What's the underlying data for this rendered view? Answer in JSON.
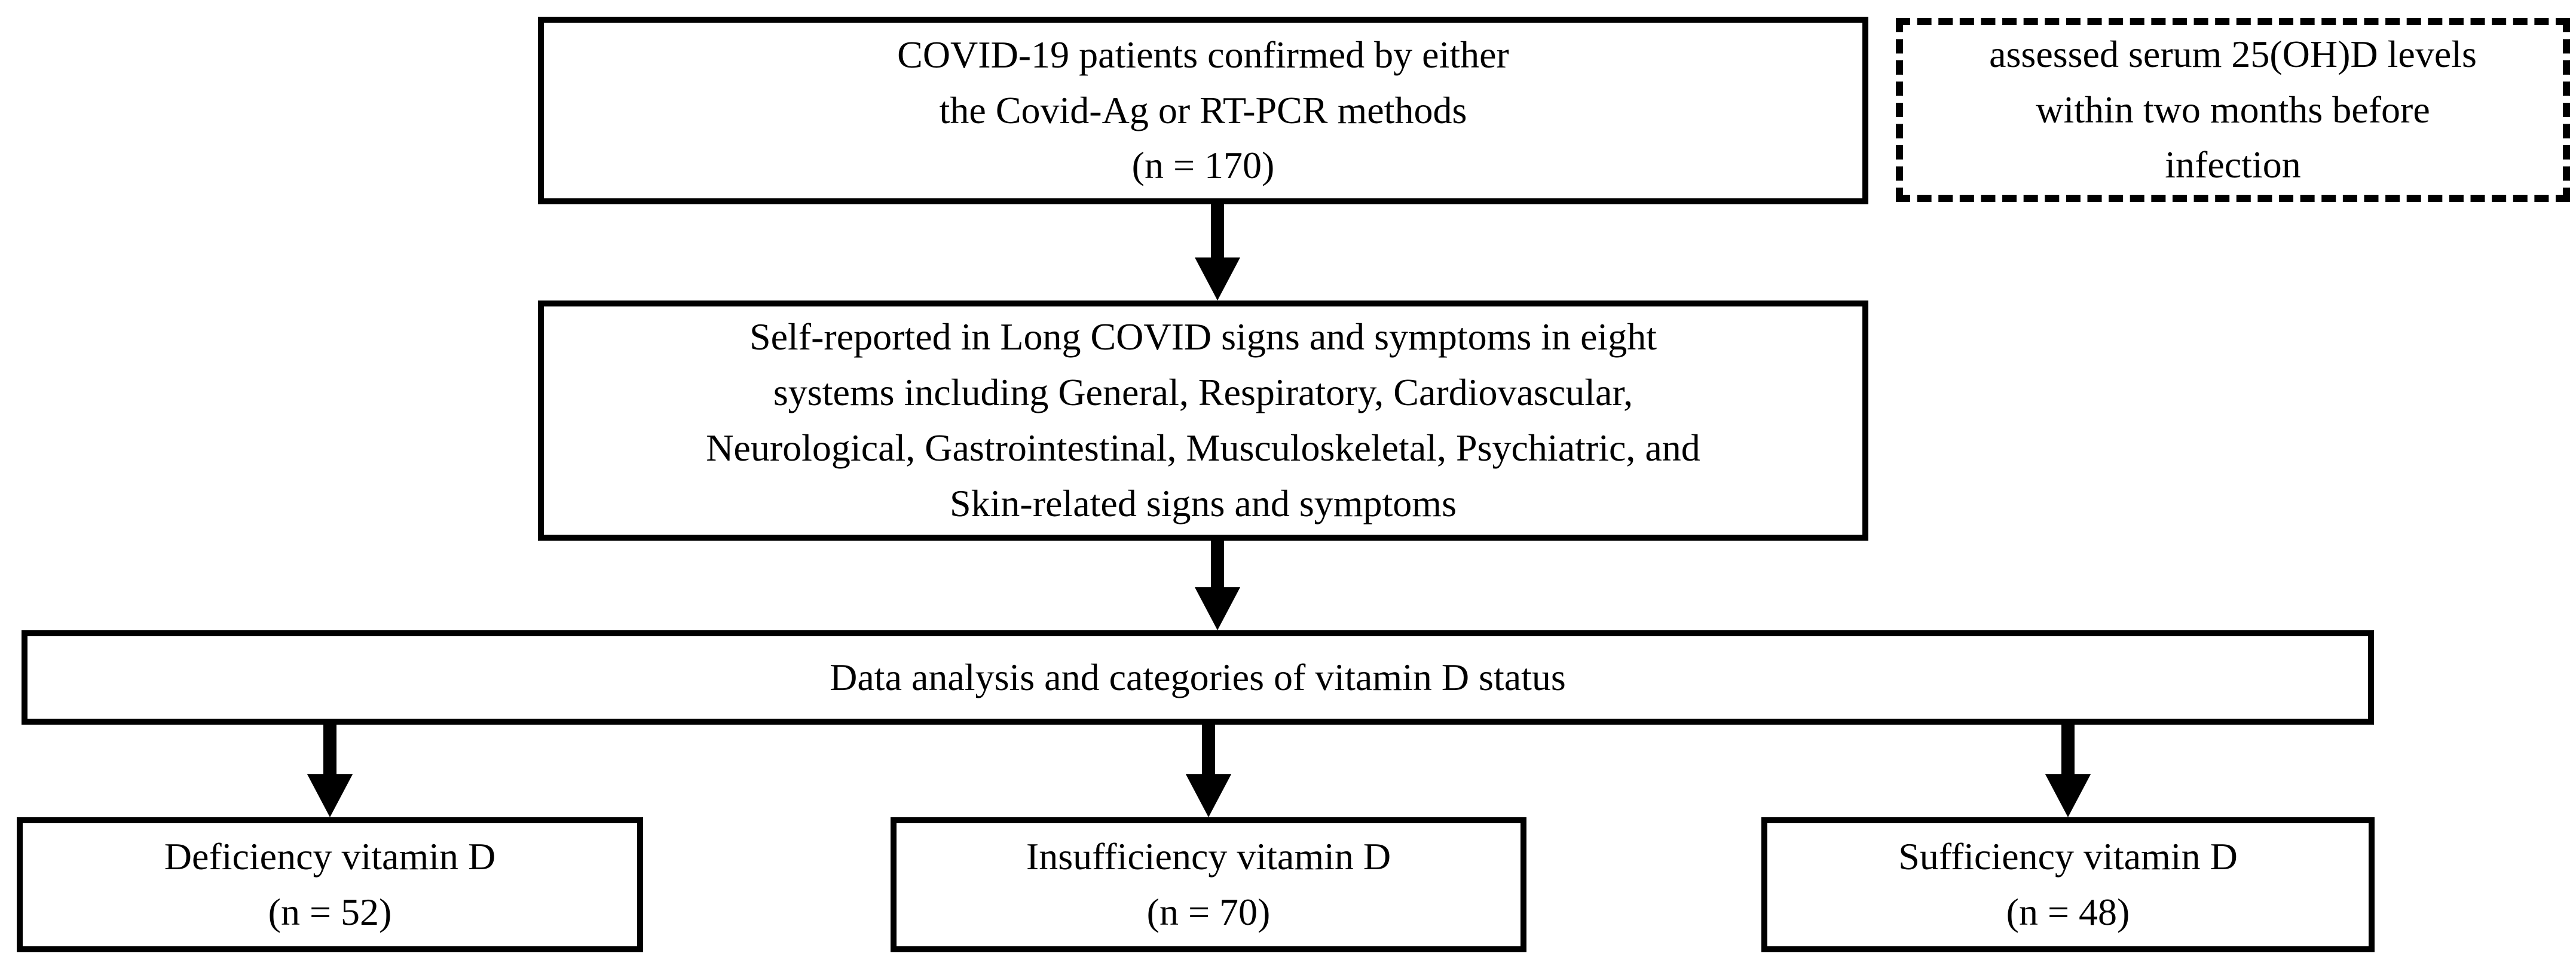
{
  "figure": {
    "type": "study-flowchart",
    "colors": {
      "ink": "#000000",
      "background": "#ffffff"
    },
    "boxes": {
      "enrollment": "COVID-19 patients confirmed by either\nthe Covid-Ag or RT-PCR methods\n(n = 170)",
      "note": "assessed serum 25(OH)D levels\nwithin two months before\ninfection",
      "symptoms": "Self-reported in Long COVID signs and symptoms in eight\nsystems including General, Respiratory, Cardiovascular,\nNeurological, Gastrointestinal, Musculoskeletal, Psychiatric, and\nSkin-related signs and symptoms",
      "analysis": "Data analysis and categories of vitamin D status",
      "deficiency": "Deficiency vitamin D\n(n = 52)",
      "insufficiency": "Insufficiency vitamin D\n(n = 70)",
      "sufficiency": "Sufficiency vitamin D\n(n = 48)"
    }
  }
}
